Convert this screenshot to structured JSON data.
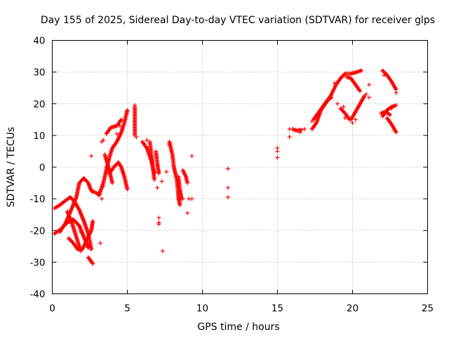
{
  "chart_data": {
    "type": "scatter",
    "title": "Day 155 of 2025, Sidereal Day-to-day VTEC variation (SDTVAR) for receiver glps",
    "xlabel": "GPS time / hours",
    "ylabel": "SDTVAR / TECUs",
    "xlim": [
      0,
      25
    ],
    "ylim": [
      -40,
      40
    ],
    "xticks": [
      0,
      5,
      10,
      15,
      20,
      25
    ],
    "yticks": [
      -40,
      -30,
      -20,
      -10,
      0,
      10,
      20,
      30,
      40
    ],
    "xtick_labels": [
      "0",
      "5",
      "10",
      "15",
      "20",
      "25"
    ],
    "ytick_labels": [
      "-40",
      "-30",
      "-20",
      "-10",
      "0",
      "10",
      "20",
      "30",
      "40"
    ],
    "grid": true,
    "marker": "+",
    "color": "#ff0000",
    "tracks": [
      {
        "name": "s1",
        "points": [
          [
            0.15,
            -21
          ],
          [
            0.6,
            -19.5
          ],
          [
            1.0,
            -17.5
          ],
          [
            1.4,
            -16.5
          ],
          [
            1.8,
            -18.5
          ],
          [
            2.1,
            -22
          ],
          [
            2.4,
            -25.5
          ]
        ]
      },
      {
        "name": "s2",
        "points": [
          [
            0.15,
            -13
          ],
          [
            0.5,
            -12
          ],
          [
            0.9,
            -10.5
          ],
          [
            1.2,
            -9.5
          ],
          [
            1.5,
            -11
          ],
          [
            1.8,
            -13.5
          ],
          [
            2.1,
            -17
          ],
          [
            2.4,
            -21
          ],
          [
            2.6,
            -26
          ]
        ]
      },
      {
        "name": "s3",
        "points": [
          [
            0.5,
            -20.5
          ],
          [
            0.9,
            -17.5
          ],
          [
            1.3,
            -13
          ],
          [
            1.6,
            -9.5
          ],
          [
            1.8,
            -5
          ],
          [
            2.1,
            -3.5
          ],
          [
            2.4,
            -5
          ],
          [
            2.6,
            -7.5
          ]
        ]
      },
      {
        "name": "s4",
        "points": [
          [
            1.0,
            -14
          ],
          [
            1.3,
            -17.5
          ],
          [
            1.6,
            -22
          ],
          [
            1.9,
            -26.5
          ]
        ]
      },
      {
        "name": "s5",
        "points": [
          [
            1.1,
            -22.5
          ],
          [
            1.4,
            -24
          ],
          [
            1.7,
            -26
          ],
          [
            2.0,
            -26
          ],
          [
            2.3,
            -23
          ],
          [
            2.6,
            -20
          ],
          [
            2.7,
            -17
          ]
        ]
      },
      {
        "name": "s6",
        "points": [
          [
            2.4,
            -28.5
          ],
          [
            2.7,
            -30.5
          ]
        ]
      },
      {
        "name": "s7",
        "points": [
          [
            2.6,
            -7.5
          ],
          [
            3.1,
            -8.5
          ]
        ]
      },
      {
        "name": "s8",
        "points": [
          [
            3.1,
            -9
          ],
          [
            3.4,
            -5
          ],
          [
            3.6,
            -1
          ],
          [
            3.8,
            3
          ],
          [
            4.0,
            6
          ],
          [
            4.3,
            8
          ],
          [
            4.6,
            11
          ],
          [
            4.8,
            14
          ],
          [
            5.0,
            18
          ]
        ]
      },
      {
        "name": "s9",
        "points": [
          [
            3.5,
            4
          ],
          [
            3.8,
            -1
          ],
          [
            4.0,
            -5
          ]
        ]
      },
      {
        "name": "s10",
        "points": [
          [
            3.6,
            10.5
          ],
          [
            3.9,
            12.5
          ],
          [
            4.3,
            13
          ],
          [
            4.6,
            15
          ]
        ]
      },
      {
        "name": "s11",
        "points": [
          [
            3.8,
            -2
          ],
          [
            4.1,
            0
          ],
          [
            4.4,
            1.5
          ],
          [
            4.6,
            0
          ],
          [
            4.8,
            -3
          ],
          [
            5.0,
            -7
          ]
        ]
      },
      {
        "name": "s12",
        "points": [
          [
            5.5,
            19
          ],
          [
            5.5,
            10
          ]
        ]
      },
      {
        "name": "s13",
        "points": [
          [
            6.0,
            8
          ],
          [
            6.3,
            6
          ],
          [
            6.6,
            2
          ],
          [
            6.8,
            -2
          ]
        ]
      },
      {
        "name": "s14",
        "points": [
          [
            6.5,
            8
          ],
          [
            6.6,
            4
          ],
          [
            6.7,
            0
          ],
          [
            6.8,
            -4
          ]
        ]
      },
      {
        "name": "s15",
        "points": [
          [
            6.9,
            5
          ],
          [
            7.0,
            1
          ],
          [
            7.1,
            -2
          ]
        ]
      },
      {
        "name": "s16",
        "points": [
          [
            7.8,
            8
          ],
          [
            8.0,
            4
          ],
          [
            8.1,
            0
          ],
          [
            8.3,
            -4
          ],
          [
            8.4,
            -9
          ],
          [
            8.5,
            -12
          ]
        ]
      },
      {
        "name": "s17",
        "points": [
          [
            8.4,
            -3
          ],
          [
            8.5,
            -7
          ],
          [
            8.6,
            -10
          ]
        ]
      },
      {
        "name": "s18",
        "points": [
          [
            8.7,
            -1
          ],
          [
            8.9,
            -3
          ],
          [
            9.0,
            -5
          ]
        ]
      },
      {
        "name": "s19",
        "points": [
          [
            16.0,
            12
          ],
          [
            16.3,
            11.5
          ],
          [
            16.6,
            11.8
          ]
        ]
      },
      {
        "name": "s20",
        "points": [
          [
            17.3,
            12
          ],
          [
            17.6,
            14
          ],
          [
            17.9,
            18
          ],
          [
            18.2,
            20
          ],
          [
            18.6,
            23
          ],
          [
            18.9,
            26
          ],
          [
            19.2,
            28
          ],
          [
            19.5,
            29.5
          ],
          [
            19.9,
            29.5
          ],
          [
            20.3,
            30
          ],
          [
            20.6,
            30.5
          ]
        ]
      },
      {
        "name": "s21",
        "points": [
          [
            17.4,
            15
          ],
          [
            17.7,
            17
          ],
          [
            18.0,
            19
          ],
          [
            18.3,
            21
          ],
          [
            18.6,
            22
          ]
        ]
      },
      {
        "name": "s22",
        "points": [
          [
            19.2,
            18.5
          ],
          [
            19.5,
            17
          ],
          [
            19.8,
            15
          ]
        ]
      },
      {
        "name": "s23",
        "points": [
          [
            19.9,
            15
          ],
          [
            20.2,
            17.5
          ],
          [
            20.5,
            20
          ],
          [
            20.8,
            22.5
          ]
        ]
      },
      {
        "name": "s24",
        "points": [
          [
            19.6,
            28.5
          ],
          [
            19.9,
            28
          ],
          [
            20.2,
            26
          ],
          [
            20.5,
            24
          ]
        ]
      },
      {
        "name": "s25",
        "points": [
          [
            22.0,
            30.5
          ],
          [
            22.3,
            29
          ],
          [
            22.6,
            27
          ],
          [
            22.9,
            24.5
          ]
        ]
      },
      {
        "name": "s26",
        "points": [
          [
            21.9,
            17
          ],
          [
            22.2,
            17.5
          ],
          [
            22.5,
            16.5
          ]
        ]
      },
      {
        "name": "s27",
        "points": [
          [
            22.0,
            16
          ],
          [
            22.3,
            18
          ],
          [
            22.6,
            19
          ],
          [
            22.9,
            19.5
          ]
        ]
      },
      {
        "name": "s28",
        "points": [
          [
            22.3,
            15.5
          ],
          [
            22.6,
            13.5
          ],
          [
            22.9,
            11
          ]
        ]
      }
    ],
    "isolated_points": [
      [
        1.1,
        -22.5
      ],
      [
        1.3,
        -23.5
      ],
      [
        1.9,
        -20.5
      ],
      [
        2.6,
        3.5
      ],
      [
        3.2,
        -24
      ],
      [
        3.3,
        -10
      ],
      [
        3.3,
        8
      ],
      [
        3.4,
        8.5
      ],
      [
        3.4,
        -6
      ],
      [
        3.6,
        0
      ],
      [
        4.3,
        10.5
      ],
      [
        4.5,
        13
      ],
      [
        5.5,
        19.5
      ],
      [
        5.6,
        9.5
      ],
      [
        6.3,
        8.5
      ],
      [
        7.0,
        -6.5
      ],
      [
        7.1,
        -16
      ],
      [
        7.1,
        -17.5
      ],
      [
        7.1,
        -18
      ],
      [
        7.3,
        -4.5
      ],
      [
        7.35,
        -26.5
      ],
      [
        7.6,
        -1.5
      ],
      [
        7.8,
        7
      ],
      [
        8.4,
        -10
      ],
      [
        8.7,
        -10
      ],
      [
        9.0,
        -14.5
      ],
      [
        9.1,
        -10
      ],
      [
        9.3,
        -10
      ],
      [
        9.3,
        3.5
      ],
      [
        11.7,
        -0.5
      ],
      [
        11.7,
        -6.5
      ],
      [
        11.7,
        -9.5
      ],
      [
        15.0,
        6
      ],
      [
        15.0,
        5
      ],
      [
        15.0,
        3
      ],
      [
        15.8,
        9.5
      ],
      [
        15.8,
        12
      ],
      [
        16.5,
        11
      ],
      [
        16.8,
        12
      ],
      [
        17.3,
        14.5
      ],
      [
        18.8,
        26.5
      ],
      [
        19.0,
        20
      ],
      [
        19.4,
        19
      ],
      [
        19.5,
        15.5
      ],
      [
        20.0,
        14
      ],
      [
        20.2,
        15
      ],
      [
        20.9,
        23
      ],
      [
        21.1,
        22
      ],
      [
        21.1,
        26
      ],
      [
        22.1,
        29
      ],
      [
        22.6,
        18.5
      ],
      [
        22.9,
        23.5
      ]
    ]
  }
}
